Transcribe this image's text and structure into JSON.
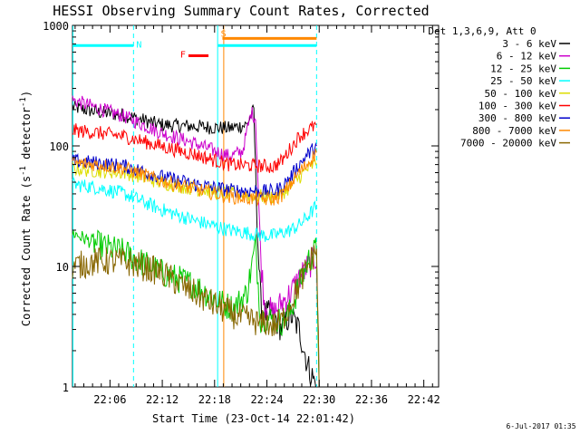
{
  "chart_data": {
    "type": "line",
    "title": "HESSI Observing Summary Count Rates, Corrected",
    "xlabel": "Start Time (23-Oct-14 22:01:42)",
    "ylabel_main": "Corrected Count Rate (s",
    "ylabel_sup1": "-1",
    "ylabel_mid": " detector",
    "ylabel_sup2": "-1",
    "ylabel_end": ")",
    "yscale": "log",
    "ylim": [
      1,
      1000
    ],
    "xlim_minutes": [
      0,
      42
    ],
    "x_unit_note": "minutes after 22:01:42",
    "x_ticks": [
      "22:06",
      "22:12",
      "22:18",
      "22:24",
      "22:30",
      "22:36",
      "22:42"
    ],
    "y_ticks": [
      "1000",
      "100",
      "10",
      "1"
    ],
    "grid": false,
    "legend_position": "right",
    "legend_title": "Det 1,3,6,9, Att 0",
    "timestamp": "6-Jul-2017 01:35",
    "series": [
      {
        "name": "3 - 6 keV",
        "color": "#000000",
        "points": [
          [
            0,
            210
          ],
          [
            3,
            190
          ],
          [
            6,
            180
          ],
          [
            10,
            150
          ],
          [
            14,
            145
          ],
          [
            18,
            140
          ],
          [
            20,
            150
          ],
          [
            20.8,
            200
          ],
          [
            21.2,
            20
          ],
          [
            21.6,
            5
          ],
          [
            22,
            4
          ],
          [
            23,
            4
          ],
          [
            24,
            3
          ],
          [
            25,
            4
          ],
          [
            26,
            3
          ],
          [
            27,
            1.5
          ],
          [
            28,
            1
          ]
        ]
      },
      {
        "name": "6 - 12 keV",
        "color": "#cc00cc",
        "points": [
          [
            0,
            240
          ],
          [
            3,
            205
          ],
          [
            6,
            175
          ],
          [
            10,
            130
          ],
          [
            14,
            105
          ],
          [
            18,
            82
          ],
          [
            19.5,
            90
          ],
          [
            20.5,
            190
          ],
          [
            21,
            170
          ],
          [
            21.6,
            12
          ],
          [
            22,
            5
          ],
          [
            23,
            4
          ],
          [
            24,
            5
          ],
          [
            25,
            6
          ],
          [
            26,
            8
          ],
          [
            27,
            10
          ],
          [
            28,
            12
          ],
          [
            28.3,
            1
          ]
        ]
      },
      {
        "name": "12 - 25 keV",
        "color": "#00cc00",
        "points": [
          [
            0,
            19
          ],
          [
            3,
            15
          ],
          [
            6,
            13
          ],
          [
            10,
            9
          ],
          [
            14,
            7
          ],
          [
            17,
            5
          ],
          [
            18.5,
            4.5
          ],
          [
            20,
            6
          ],
          [
            21,
            15
          ],
          [
            21.6,
            3.5
          ],
          [
            22,
            3.8
          ],
          [
            23,
            3.6
          ],
          [
            24,
            3.5
          ],
          [
            25,
            4.2
          ],
          [
            26,
            7
          ],
          [
            27,
            11
          ],
          [
            28,
            14
          ],
          [
            28.3,
            1
          ]
        ]
      },
      {
        "name": "25 - 50 keV",
        "color": "#00ffff",
        "points": [
          [
            0,
            48
          ],
          [
            3,
            45
          ],
          [
            6,
            40
          ],
          [
            10,
            30
          ],
          [
            14,
            24
          ],
          [
            18,
            20
          ],
          [
            20,
            19
          ],
          [
            22,
            18
          ],
          [
            23,
            18
          ],
          [
            24,
            19
          ],
          [
            25,
            20
          ],
          [
            26,
            22
          ],
          [
            27,
            26
          ],
          [
            28,
            32
          ]
        ]
      },
      {
        "name": "50 - 100 keV",
        "color": "#dddd00",
        "points": [
          [
            0,
            65
          ],
          [
            3,
            62
          ],
          [
            6,
            60
          ],
          [
            10,
            50
          ],
          [
            14,
            44
          ],
          [
            18,
            40
          ],
          [
            22,
            38
          ],
          [
            23,
            38
          ],
          [
            24,
            40
          ],
          [
            25,
            46
          ],
          [
            26,
            55
          ],
          [
            27,
            65
          ],
          [
            28,
            72
          ]
        ]
      },
      {
        "name": "100 - 300 keV",
        "color": "#ff0000",
        "points": [
          [
            0,
            135
          ],
          [
            3,
            128
          ],
          [
            6,
            120
          ],
          [
            10,
            100
          ],
          [
            14,
            85
          ],
          [
            18,
            70
          ],
          [
            22,
            68
          ],
          [
            23,
            67
          ],
          [
            24,
            75
          ],
          [
            25,
            95
          ],
          [
            26,
            120
          ],
          [
            27,
            135
          ],
          [
            28,
            150
          ]
        ]
      },
      {
        "name": "300 - 800 keV",
        "color": "#0000cc",
        "points": [
          [
            0,
            75
          ],
          [
            3,
            72
          ],
          [
            6,
            68
          ],
          [
            10,
            56
          ],
          [
            14,
            48
          ],
          [
            18,
            43
          ],
          [
            22,
            42
          ],
          [
            23,
            42
          ],
          [
            24,
            45
          ],
          [
            25,
            55
          ],
          [
            26,
            70
          ],
          [
            27,
            85
          ],
          [
            28,
            100
          ]
        ]
      },
      {
        "name": "800 - 7000 keV",
        "color": "#ff8800",
        "points": [
          [
            0,
            72
          ],
          [
            3,
            70
          ],
          [
            6,
            65
          ],
          [
            10,
            52
          ],
          [
            14,
            44
          ],
          [
            18,
            38
          ],
          [
            22,
            36
          ],
          [
            23,
            36
          ],
          [
            24,
            39
          ],
          [
            25,
            48
          ],
          [
            26,
            60
          ],
          [
            27,
            72
          ],
          [
            28,
            88
          ]
        ]
      },
      {
        "name": "7000 - 20000 keV",
        "color": "#886600",
        "points": [
          [
            0,
            10
          ],
          [
            3,
            11
          ],
          [
            6,
            11
          ],
          [
            10,
            9
          ],
          [
            14,
            6
          ],
          [
            17,
            4.5
          ],
          [
            19,
            3.8
          ],
          [
            21,
            3.5
          ],
          [
            21.6,
            3.2
          ],
          [
            22,
            3.5
          ],
          [
            23,
            3.2
          ],
          [
            24,
            3.5
          ],
          [
            25,
            5
          ],
          [
            26,
            7
          ],
          [
            27,
            10
          ],
          [
            28,
            14
          ],
          [
            28.3,
            1
          ]
        ]
      }
    ],
    "annotations": [
      {
        "label": "N",
        "color": "#00ffff",
        "x_minutes": 7.0,
        "y": 680,
        "segments": [
          [
            0,
            7.0
          ],
          [
            16.7,
            28.0
          ]
        ],
        "dashed_x": [
          7.0,
          28.0
        ]
      },
      {
        "label": "F",
        "color": "#ff0000",
        "x_minutes": 13.3,
        "y": 560,
        "segments": [
          [
            13.3,
            15.6
          ]
        ]
      },
      {
        "label": "S",
        "color": "#ff8800",
        "x_minutes": 16.7,
        "y": 780,
        "segments": [
          [
            17.2,
            28.0
          ]
        ]
      }
    ],
    "vertical_lines": [
      {
        "color": "#00ffff",
        "x_minutes": 0.05,
        "dashed": false
      },
      {
        "color": "#00ffff",
        "x_minutes": 16.65,
        "dashed": false
      },
      {
        "color": "#ff8800",
        "x_minutes": 17.35,
        "dashed": false
      }
    ]
  }
}
